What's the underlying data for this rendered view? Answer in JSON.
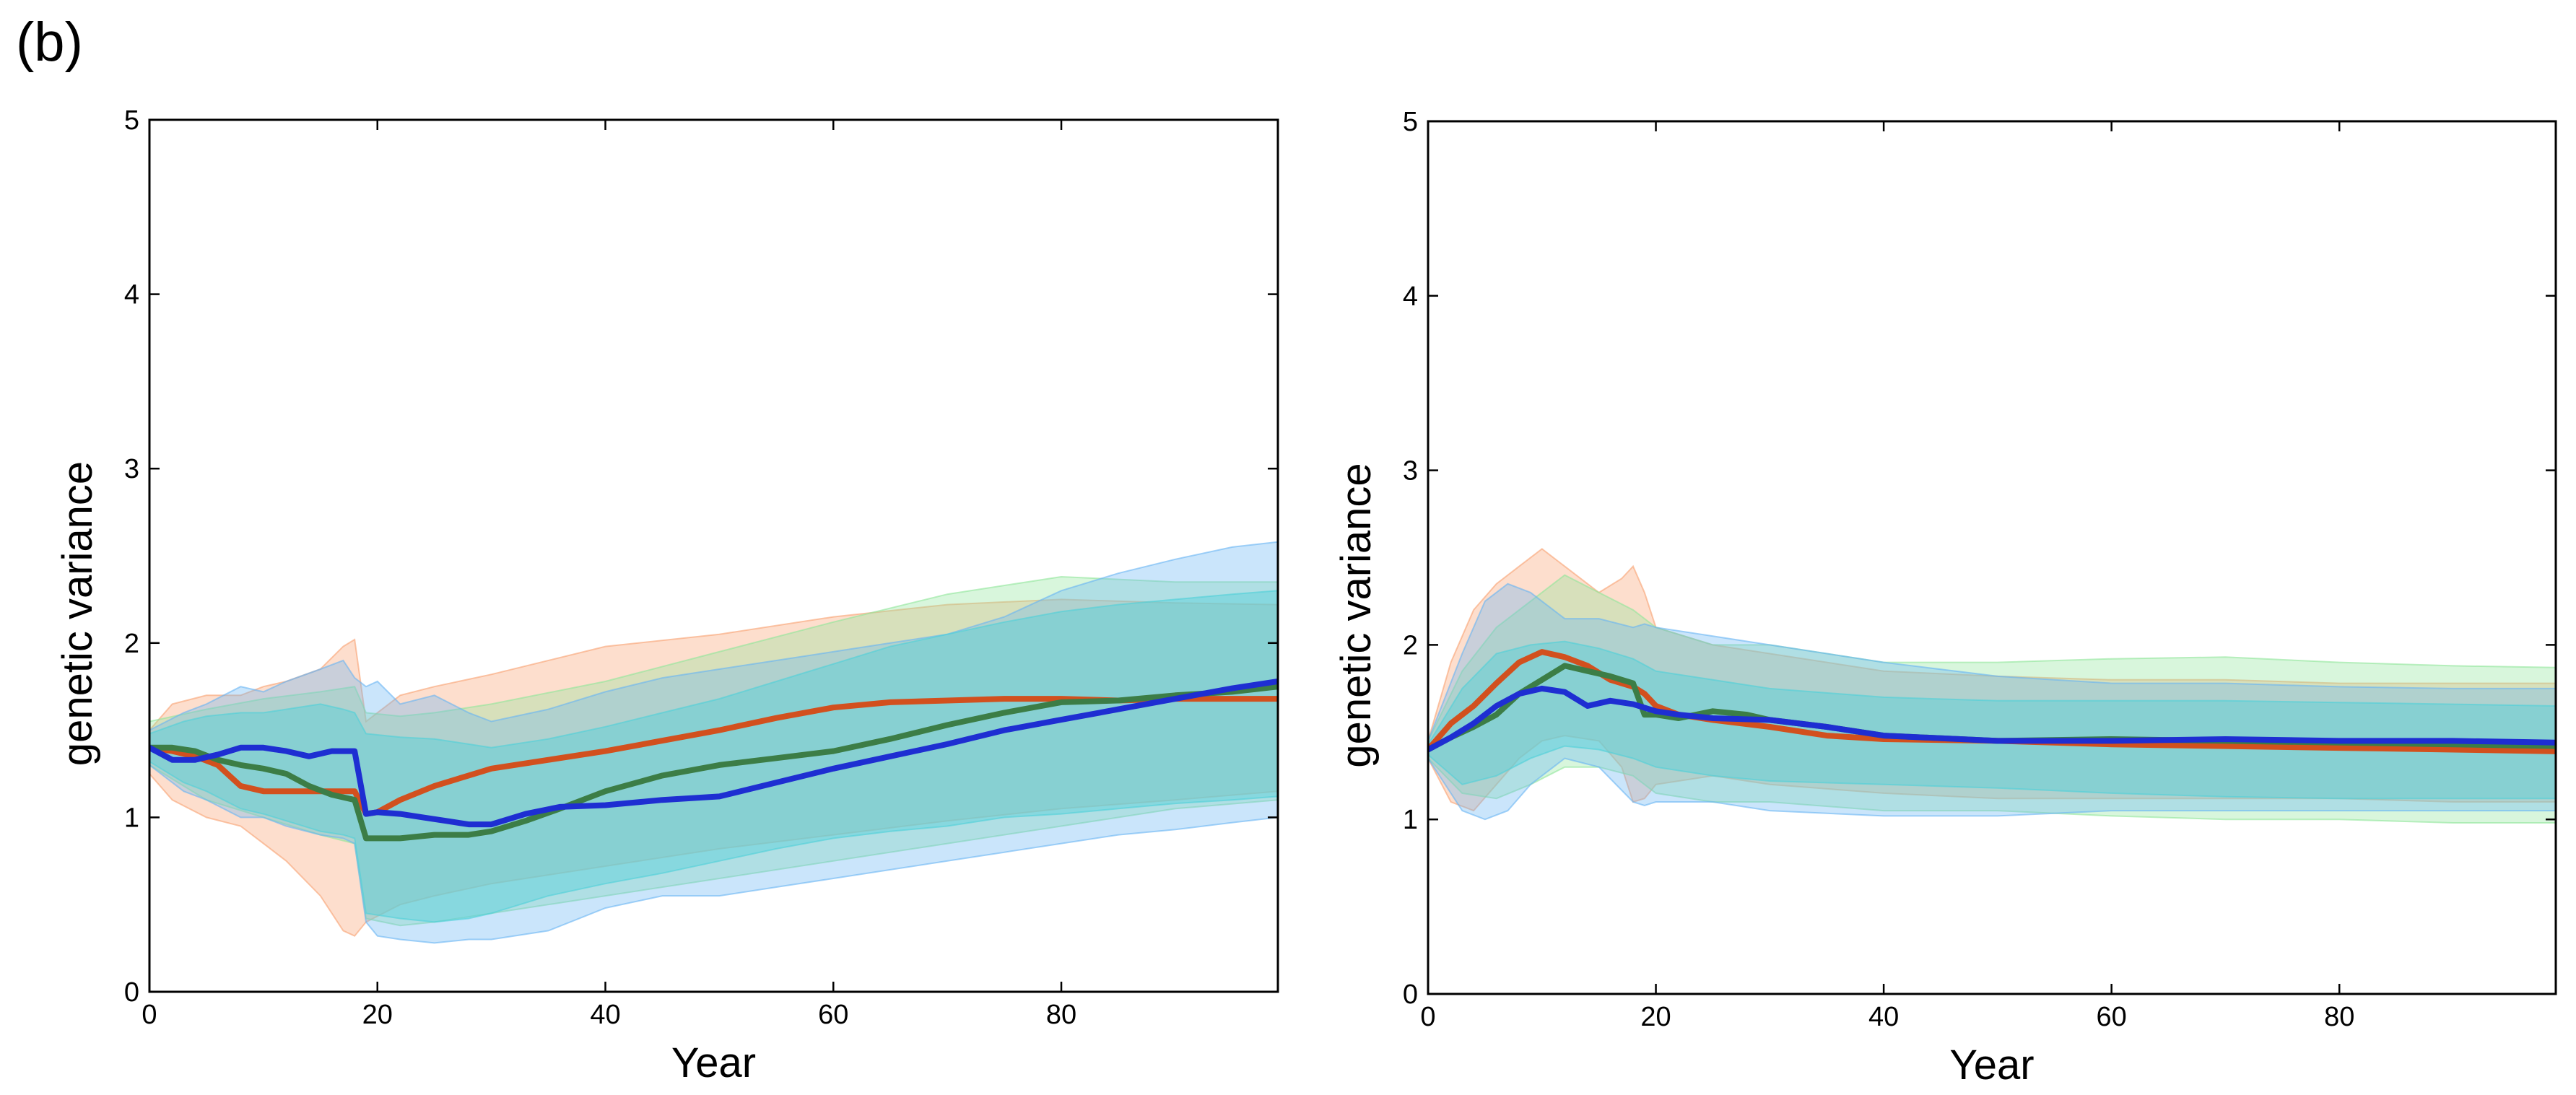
{
  "figure": {
    "panel_label": "(b)"
  },
  "colors": {
    "red_line": "#d2501e",
    "green_line": "#3c7d46",
    "blue_line": "#1e2ed2",
    "red_band": "#f8a070",
    "green_band": "#90e69a",
    "blue_band": "#68b4f4",
    "cyan_band": "#4ed0d8"
  },
  "chart_data": [
    {
      "type": "line",
      "title": "",
      "xlabel": "Year",
      "ylabel": "genetic variance",
      "xlim": [
        0,
        99
      ],
      "ylim": [
        0,
        5
      ],
      "xticks": [
        0,
        20,
        40,
        60,
        80
      ],
      "xtick_labels": [
        "0",
        "20",
        "40",
        "60",
        "80"
      ],
      "yticks": [
        0,
        1,
        2,
        3,
        4,
        5
      ],
      "ytick_labels": [
        "0",
        "1",
        "2",
        "3",
        "4",
        "5"
      ],
      "grid": false,
      "bands": [
        {
          "name": "red-outer",
          "color_key": "red_band",
          "opacity": 0.35,
          "x": [
            0,
            2,
            5,
            8,
            10,
            12,
            15,
            17,
            18,
            19,
            22,
            25,
            30,
            40,
            50,
            60,
            70,
            80,
            90,
            99
          ],
          "lower": [
            1.25,
            1.1,
            1.0,
            0.95,
            0.85,
            0.75,
            0.55,
            0.35,
            0.32,
            0.4,
            0.5,
            0.55,
            0.62,
            0.72,
            0.82,
            0.9,
            0.98,
            1.05,
            1.1,
            1.15
          ],
          "upper": [
            1.5,
            1.65,
            1.7,
            1.7,
            1.75,
            1.78,
            1.85,
            1.98,
            2.02,
            1.55,
            1.7,
            1.75,
            1.82,
            1.98,
            2.05,
            2.15,
            2.22,
            2.25,
            2.23,
            2.22
          ]
        },
        {
          "name": "green-outer",
          "color_key": "green_band",
          "opacity": 0.35,
          "x": [
            0,
            5,
            10,
            15,
            18,
            19,
            22,
            25,
            30,
            40,
            50,
            60,
            70,
            80,
            90,
            99
          ],
          "lower": [
            1.3,
            1.1,
            1.0,
            0.9,
            0.85,
            0.42,
            0.38,
            0.4,
            0.45,
            0.55,
            0.65,
            0.75,
            0.85,
            0.95,
            1.05,
            1.1
          ],
          "upper": [
            1.55,
            1.62,
            1.68,
            1.72,
            1.75,
            1.6,
            1.58,
            1.6,
            1.65,
            1.78,
            1.95,
            2.12,
            2.28,
            2.38,
            2.35,
            2.35
          ]
        },
        {
          "name": "blue-outer",
          "color_key": "blue_band",
          "opacity": 0.35,
          "x": [
            0,
            3,
            5,
            8,
            10,
            12,
            15,
            17,
            18,
            19,
            20,
            22,
            25,
            28,
            30,
            35,
            40,
            45,
            50,
            55,
            60,
            65,
            70,
            75,
            80,
            85,
            90,
            95,
            99
          ],
          "lower": [
            1.3,
            1.15,
            1.1,
            1.0,
            1.0,
            0.95,
            0.9,
            0.88,
            0.85,
            0.4,
            0.32,
            0.3,
            0.28,
            0.3,
            0.3,
            0.35,
            0.48,
            0.55,
            0.55,
            0.6,
            0.65,
            0.7,
            0.75,
            0.8,
            0.85,
            0.9,
            0.93,
            0.97,
            1.0
          ],
          "upper": [
            1.5,
            1.6,
            1.65,
            1.75,
            1.72,
            1.78,
            1.85,
            1.9,
            1.8,
            1.75,
            1.78,
            1.65,
            1.7,
            1.6,
            1.55,
            1.62,
            1.72,
            1.8,
            1.85,
            1.9,
            1.95,
            2.0,
            2.05,
            2.15,
            2.3,
            2.4,
            2.48,
            2.55,
            2.58
          ]
        },
        {
          "name": "cyan-inner",
          "color_key": "cyan_band",
          "opacity": 0.42,
          "x": [
            0,
            3,
            5,
            8,
            10,
            12,
            15,
            17,
            18,
            19,
            22,
            25,
            28,
            30,
            35,
            40,
            45,
            50,
            55,
            60,
            65,
            70,
            75,
            80,
            85,
            90,
            95,
            99
          ],
          "lower": [
            1.32,
            1.2,
            1.15,
            1.05,
            1.02,
            0.98,
            0.92,
            0.9,
            0.88,
            0.45,
            0.42,
            0.4,
            0.42,
            0.45,
            0.55,
            0.62,
            0.68,
            0.75,
            0.82,
            0.88,
            0.92,
            0.95,
            1.0,
            1.02,
            1.05,
            1.08,
            1.1,
            1.12
          ],
          "upper": [
            1.48,
            1.55,
            1.58,
            1.6,
            1.6,
            1.62,
            1.65,
            1.62,
            1.6,
            1.48,
            1.46,
            1.45,
            1.42,
            1.4,
            1.45,
            1.52,
            1.6,
            1.68,
            1.78,
            1.88,
            1.98,
            2.05,
            2.12,
            2.18,
            2.22,
            2.25,
            2.28,
            2.3
          ]
        }
      ],
      "series": [
        {
          "name": "red",
          "color_key": "red_line",
          "x": [
            0,
            2,
            4,
            6,
            8,
            10,
            12,
            14,
            16,
            17,
            18,
            19,
            20,
            22,
            25,
            28,
            30,
            35,
            40,
            45,
            50,
            55,
            60,
            65,
            70,
            75,
            80,
            85,
            90,
            95,
            99
          ],
          "y": [
            1.4,
            1.38,
            1.35,
            1.3,
            1.18,
            1.15,
            1.15,
            1.15,
            1.15,
            1.15,
            1.15,
            1.02,
            1.03,
            1.1,
            1.18,
            1.24,
            1.28,
            1.33,
            1.38,
            1.44,
            1.5,
            1.57,
            1.63,
            1.66,
            1.67,
            1.68,
            1.68,
            1.67,
            1.68,
            1.68,
            1.68
          ]
        },
        {
          "name": "green",
          "color_key": "green_line",
          "x": [
            0,
            2,
            4,
            6,
            8,
            10,
            12,
            14,
            16,
            18,
            19,
            20,
            22,
            25,
            28,
            30,
            33,
            36,
            40,
            45,
            50,
            55,
            60,
            65,
            70,
            75,
            80,
            85,
            90,
            95,
            99
          ],
          "y": [
            1.4,
            1.4,
            1.38,
            1.33,
            1.3,
            1.28,
            1.25,
            1.18,
            1.13,
            1.1,
            0.88,
            0.88,
            0.88,
            0.9,
            0.9,
            0.92,
            0.98,
            1.05,
            1.15,
            1.24,
            1.3,
            1.34,
            1.38,
            1.45,
            1.53,
            1.6,
            1.66,
            1.67,
            1.7,
            1.72,
            1.75
          ]
        },
        {
          "name": "blue",
          "color_key": "blue_line",
          "x": [
            0,
            2,
            4,
            6,
            8,
            10,
            12,
            14,
            16,
            18,
            19,
            20,
            22,
            24,
            26,
            28,
            30,
            33,
            36,
            40,
            45,
            50,
            55,
            60,
            65,
            70,
            75,
            80,
            85,
            90,
            95,
            99
          ],
          "y": [
            1.4,
            1.33,
            1.33,
            1.36,
            1.4,
            1.4,
            1.38,
            1.35,
            1.38,
            1.38,
            1.02,
            1.03,
            1.02,
            1.0,
            0.98,
            0.96,
            0.96,
            1.02,
            1.06,
            1.07,
            1.1,
            1.12,
            1.2,
            1.28,
            1.35,
            1.42,
            1.5,
            1.56,
            1.62,
            1.68,
            1.74,
            1.78
          ]
        }
      ]
    },
    {
      "type": "line",
      "title": "",
      "xlabel": "Year",
      "ylabel": "genetic variance",
      "xlim": [
        0,
        99
      ],
      "ylim": [
        0,
        5
      ],
      "xticks": [
        0,
        20,
        40,
        60,
        80
      ],
      "xtick_labels": [
        "0",
        "20",
        "40",
        "60",
        "80"
      ],
      "yticks": [
        0,
        1,
        2,
        3,
        4,
        5
      ],
      "ytick_labels": [
        "0",
        "1",
        "2",
        "3",
        "4",
        "5"
      ],
      "grid": false,
      "bands": [
        {
          "name": "red-outer",
          "color_key": "red_band",
          "opacity": 0.35,
          "x": [
            0,
            2,
            4,
            6,
            8,
            10,
            12,
            15,
            17,
            18,
            19,
            20,
            25,
            30,
            40,
            50,
            60,
            70,
            80,
            90,
            99
          ],
          "lower": [
            1.35,
            1.1,
            1.05,
            1.2,
            1.35,
            1.45,
            1.48,
            1.45,
            1.3,
            1.1,
            1.12,
            1.2,
            1.25,
            1.2,
            1.15,
            1.12,
            1.12,
            1.12,
            1.12,
            1.1,
            1.1
          ],
          "upper": [
            1.45,
            1.9,
            2.2,
            2.35,
            2.45,
            2.55,
            2.45,
            2.3,
            2.38,
            2.45,
            2.3,
            2.1,
            2.0,
            1.95,
            1.85,
            1.82,
            1.8,
            1.8,
            1.78,
            1.78,
            1.78
          ]
        },
        {
          "name": "green-outer",
          "color_key": "green_band",
          "opacity": 0.35,
          "x": [
            0,
            3,
            6,
            9,
            12,
            15,
            18,
            20,
            25,
            30,
            40,
            50,
            60,
            70,
            80,
            90,
            99
          ],
          "lower": [
            1.35,
            1.15,
            1.12,
            1.2,
            1.3,
            1.3,
            1.25,
            1.15,
            1.1,
            1.1,
            1.05,
            1.05,
            1.02,
            1.0,
            1.0,
            0.98,
            0.98
          ],
          "upper": [
            1.45,
            1.85,
            2.1,
            2.25,
            2.4,
            2.3,
            2.2,
            2.1,
            2.0,
            2.0,
            1.9,
            1.9,
            1.92,
            1.93,
            1.9,
            1.88,
            1.87
          ]
        },
        {
          "name": "blue-outer",
          "color_key": "blue_band",
          "opacity": 0.35,
          "x": [
            0,
            3,
            5,
            7,
            9,
            12,
            15,
            18,
            19,
            20,
            25,
            30,
            40,
            50,
            60,
            70,
            80,
            90,
            99
          ],
          "lower": [
            1.35,
            1.05,
            1.0,
            1.05,
            1.2,
            1.35,
            1.3,
            1.1,
            1.08,
            1.1,
            1.1,
            1.05,
            1.02,
            1.02,
            1.05,
            1.05,
            1.05,
            1.05,
            1.05
          ],
          "upper": [
            1.45,
            1.95,
            2.25,
            2.35,
            2.3,
            2.15,
            2.15,
            2.1,
            2.12,
            2.1,
            2.05,
            2.0,
            1.9,
            1.82,
            1.78,
            1.78,
            1.76,
            1.75,
            1.75
          ]
        },
        {
          "name": "cyan-inner",
          "color_key": "cyan_band",
          "opacity": 0.42,
          "x": [
            0,
            3,
            6,
            9,
            12,
            15,
            18,
            20,
            25,
            30,
            40,
            50,
            60,
            70,
            80,
            90,
            99
          ],
          "lower": [
            1.37,
            1.2,
            1.25,
            1.35,
            1.42,
            1.4,
            1.35,
            1.3,
            1.25,
            1.22,
            1.2,
            1.18,
            1.15,
            1.13,
            1.12,
            1.12,
            1.12
          ],
          "upper": [
            1.43,
            1.75,
            1.95,
            2.0,
            2.02,
            1.98,
            1.92,
            1.85,
            1.8,
            1.75,
            1.7,
            1.68,
            1.68,
            1.68,
            1.67,
            1.66,
            1.65
          ]
        }
      ],
      "series": [
        {
          "name": "red",
          "color_key": "red_line",
          "x": [
            0,
            2,
            4,
            6,
            8,
            10,
            12,
            14,
            16,
            18,
            19,
            20,
            22,
            25,
            30,
            35,
            40,
            50,
            60,
            70,
            80,
            90,
            99
          ],
          "y": [
            1.4,
            1.55,
            1.65,
            1.78,
            1.9,
            1.96,
            1.93,
            1.88,
            1.8,
            1.76,
            1.72,
            1.65,
            1.6,
            1.57,
            1.53,
            1.48,
            1.46,
            1.45,
            1.43,
            1.42,
            1.41,
            1.4,
            1.39
          ]
        },
        {
          "name": "green",
          "color_key": "green_line",
          "x": [
            0,
            2,
            4,
            6,
            8,
            10,
            12,
            14,
            16,
            18,
            19,
            20,
            22,
            25,
            28,
            30,
            35,
            40,
            50,
            60,
            70,
            80,
            90,
            99
          ],
          "y": [
            1.4,
            1.47,
            1.53,
            1.6,
            1.72,
            1.8,
            1.88,
            1.85,
            1.82,
            1.78,
            1.6,
            1.6,
            1.58,
            1.62,
            1.6,
            1.57,
            1.53,
            1.48,
            1.45,
            1.46,
            1.45,
            1.44,
            1.43,
            1.42
          ]
        },
        {
          "name": "blue",
          "color_key": "blue_line",
          "x": [
            0,
            2,
            4,
            6,
            8,
            10,
            12,
            14,
            16,
            18,
            20,
            22,
            25,
            30,
            35,
            40,
            50,
            60,
            70,
            80,
            90,
            99
          ],
          "y": [
            1.4,
            1.47,
            1.55,
            1.65,
            1.72,
            1.75,
            1.73,
            1.65,
            1.68,
            1.66,
            1.62,
            1.6,
            1.58,
            1.57,
            1.53,
            1.48,
            1.45,
            1.45,
            1.46,
            1.45,
            1.45,
            1.44
          ]
        }
      ]
    }
  ]
}
